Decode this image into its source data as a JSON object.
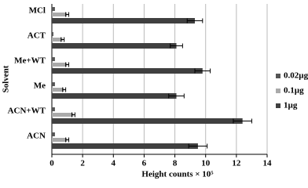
{
  "chart_data": {
    "type": "bar",
    "orientation": "horizontal",
    "x_label": "Height counts × 10⁵",
    "y_label": "Solvent",
    "categories": [
      "MCl",
      "ACT",
      "Me+WT",
      "Me",
      "ACN+WT",
      "ACN"
    ],
    "series": [
      {
        "name": "0.02µg",
        "color": "#555555",
        "values": [
          0.2,
          0.1,
          0.2,
          0.2,
          0.2,
          0.2
        ]
      },
      {
        "name": "0.1µg",
        "color": "#aaaaaa",
        "values": [
          1.0,
          0.7,
          1.0,
          0.8,
          1.4,
          1.0
        ],
        "errors": [
          0.1,
          0.1,
          0.1,
          0.1,
          0.1,
          0.1
        ]
      },
      {
        "name": "1µg",
        "color": "#404040",
        "values": [
          9.3,
          8.1,
          9.8,
          8.1,
          12.4,
          9.5
        ],
        "errors": [
          0.5,
          0.4,
          0.5,
          0.5,
          0.6,
          0.6
        ]
      }
    ],
    "xlim": [
      0,
      14
    ],
    "xticks": [
      0,
      2,
      4,
      6,
      8,
      10,
      12,
      14
    ],
    "grid": true,
    "legend": "right"
  }
}
